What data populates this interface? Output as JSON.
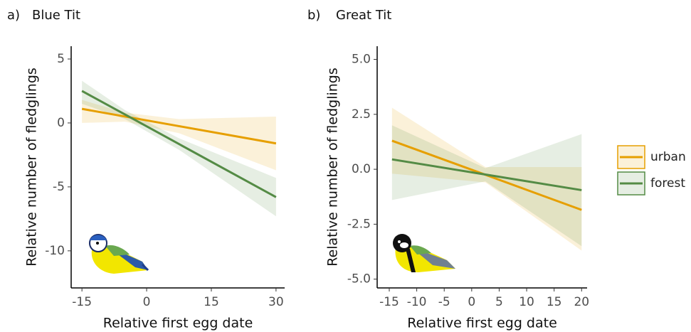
{
  "chart_data": [
    {
      "type": "line",
      "label": "a)",
      "title": "Blue Tit",
      "x_label": "Relative first egg date",
      "y_label": "Relative number of fledglings",
      "x": [
        -15,
        -5,
        7.5,
        30
      ],
      "series": [
        {
          "color": "#e69f00",
          "values": [
            1.1,
            0.5,
            -0.25,
            -1.6
          ],
          "lower": [
            0.0,
            0.1,
            -0.8,
            -3.7
          ],
          "upper": [
            1.8,
            0.8,
            0.3,
            0.5
          ]
        },
        {
          "color": "#548b45",
          "values": [
            2.5,
            0.66,
            -1.65,
            -5.8
          ],
          "lower": [
            1.5,
            0.3,
            -2.1,
            -7.3
          ],
          "upper": [
            3.3,
            1.0,
            -1.2,
            -4.3
          ]
        }
      ],
      "xlim": [
        -17.5,
        32
      ],
      "xticks": [
        -15,
        0,
        15,
        30
      ],
      "ylim": [
        -12.9,
        6
      ],
      "yticks": [
        5,
        0,
        -5,
        -10
      ]
    },
    {
      "type": "line",
      "label": "b)",
      "title": "Great Tit",
      "x_label": "Relative first egg date",
      "y_label": "Relative number of fledglings",
      "x": [
        -14.5,
        2.5,
        20
      ],
      "series": [
        {
          "name": "urban",
          "color": "#e69f00",
          "values": [
            1.3,
            -0.25,
            -1.85
          ],
          "lower": [
            -0.2,
            -0.6,
            -3.7
          ],
          "upper": [
            2.8,
            0.1,
            0.1
          ]
        },
        {
          "name": "forest",
          "color": "#548b45",
          "values": [
            0.45,
            -0.24,
            -0.95
          ],
          "lower": [
            -1.4,
            -0.55,
            -3.5
          ],
          "upper": [
            2.0,
            0.05,
            1.6
          ]
        }
      ],
      "legend": "right",
      "xlim": [
        -17.2,
        21
      ],
      "xticks": [
        -15,
        -10,
        -5,
        0,
        5,
        10,
        15,
        20
      ],
      "ylim": [
        -5.4,
        5.6
      ],
      "yticks": [
        {
          "value": 5,
          "label": "5.0"
        },
        {
          "value": 2.5,
          "label": "2.5"
        },
        {
          "value": 0,
          "label": "0.0"
        },
        -2.5,
        {
          "value": -5,
          "label": "-5.0"
        }
      ]
    }
  ]
}
